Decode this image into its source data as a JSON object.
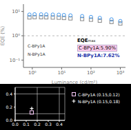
{
  "chart_data": [
    {
      "type": "scatter",
      "xlabel": "Luminance (cd/m²)",
      "ylabel": "EQE (%)",
      "x": [
        0.8,
        1.2,
        2.0,
        3.0,
        5.0,
        8.0,
        12.0,
        20.0,
        50.0,
        100.0,
        200.0,
        500.0,
        1000.0
      ],
      "series": [
        {
          "color": "#888888",
          "marker": "square",
          "values": [
            5.7,
            5.85,
            5.8,
            5.75,
            5.65,
            5.55,
            5.4,
            5.2,
            4.9,
            4.6,
            4.2,
            3.7,
            3.2
          ]
        },
        {
          "color": "#4499ee",
          "marker": "circle",
          "values": [
            7.4,
            7.6,
            7.55,
            7.5,
            7.4,
            7.3,
            7.1,
            6.85,
            6.4,
            5.9,
            5.4,
            4.7,
            4.0
          ]
        }
      ],
      "log": true,
      "xlim": [
        0.5,
        1500
      ],
      "ylim": [
        0.05,
        20
      ],
      "xticks": [
        {
          "value": 1,
          "label": "10⁰"
        },
        {
          "value": 10,
          "label": "10¹"
        },
        {
          "value": 100,
          "label": "10²"
        },
        {
          "value": 1000,
          "label": "10³"
        }
      ],
      "yticks": [
        {
          "value": 0.1,
          "label": "10⁻¹"
        },
        {
          "value": 1,
          "label": "10⁰"
        },
        {
          "value": 10,
          "label": "10¹"
        }
      ],
      "grid": false,
      "hline": 1,
      "annotations": [
        "EQE",
        "max",
        "C-BPy1A:5.90%",
        "N-BPy1A:7.62%",
        "C-BPy1A",
        "N-BPy1A"
      ]
    },
    {
      "type": "scatter",
      "series": [
        {
          "name": "C-BPy1A (0.15,0.12)",
          "color": "#ffccff",
          "marker": "square",
          "x": [
            0.15
          ],
          "values": [
            0.12
          ]
        },
        {
          "name": "N-BPy1A (0.15,0.18)",
          "color": "#ffffff",
          "marker": "cross",
          "x": [
            0.15
          ],
          "values": [
            0.18
          ]
        }
      ],
      "xlim": [
        0,
        0.45
      ],
      "ylim": [
        0,
        0.5
      ],
      "xticks": [
        {
          "value": 0,
          "label": "0.0"
        },
        0.1,
        0.2,
        0.3,
        0.4
      ],
      "yticks": [
        {
          "value": 0,
          "label": "0.0"
        },
        0.1,
        0.2,
        0.3,
        0.4
      ],
      "grid": true,
      "legend": "right"
    }
  ]
}
